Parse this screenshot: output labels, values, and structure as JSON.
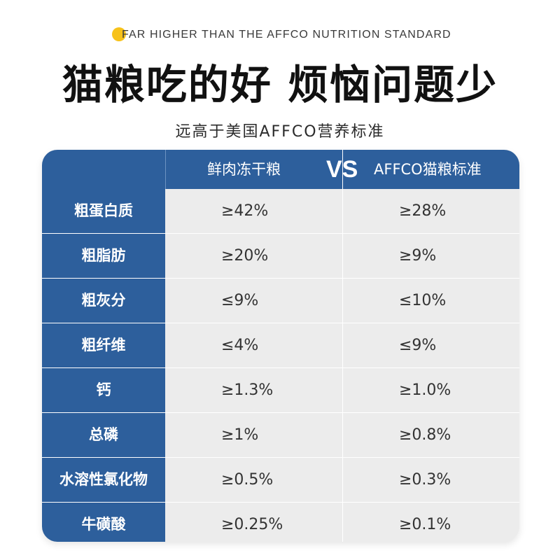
{
  "header": {
    "tagline": "FAR HIGHER THAN THE AFFCO NUTRITION STANDARD",
    "headline": "猫粮吃的好 烦恼问题少",
    "subtitle": "远高于美国AFFCO营养标准"
  },
  "table": {
    "columns": {
      "product": "鲜肉冻干粮",
      "vs": "VS",
      "standard": "AFFCO猫粮标准"
    },
    "rows": [
      {
        "label": "粗蛋白质",
        "product": "≥42%",
        "standard": "≥28%"
      },
      {
        "label": "粗脂肪",
        "product": "≥20%",
        "standard": "≥9%"
      },
      {
        "label": "粗灰分",
        "product": "≤9%",
        "standard": "≤10%"
      },
      {
        "label": "粗纤维",
        "product": "≤4%",
        "standard": "≤9%"
      },
      {
        "label": "钙",
        "product": "≥1.3%",
        "standard": "≥1.0%"
      },
      {
        "label": "总磷",
        "product": "≥1%",
        "standard": "≥0.8%"
      },
      {
        "label": "水溶性氯化物",
        "product": "≥0.5%",
        "standard": "≥0.3%"
      },
      {
        "label": "牛磺酸",
        "product": "≥0.25%",
        "standard": "≥0.1%"
      }
    ]
  },
  "colors": {
    "accent_dot": "#f7c21a",
    "table_blue": "#2d5f9c",
    "cell_gray": "#ececec"
  }
}
